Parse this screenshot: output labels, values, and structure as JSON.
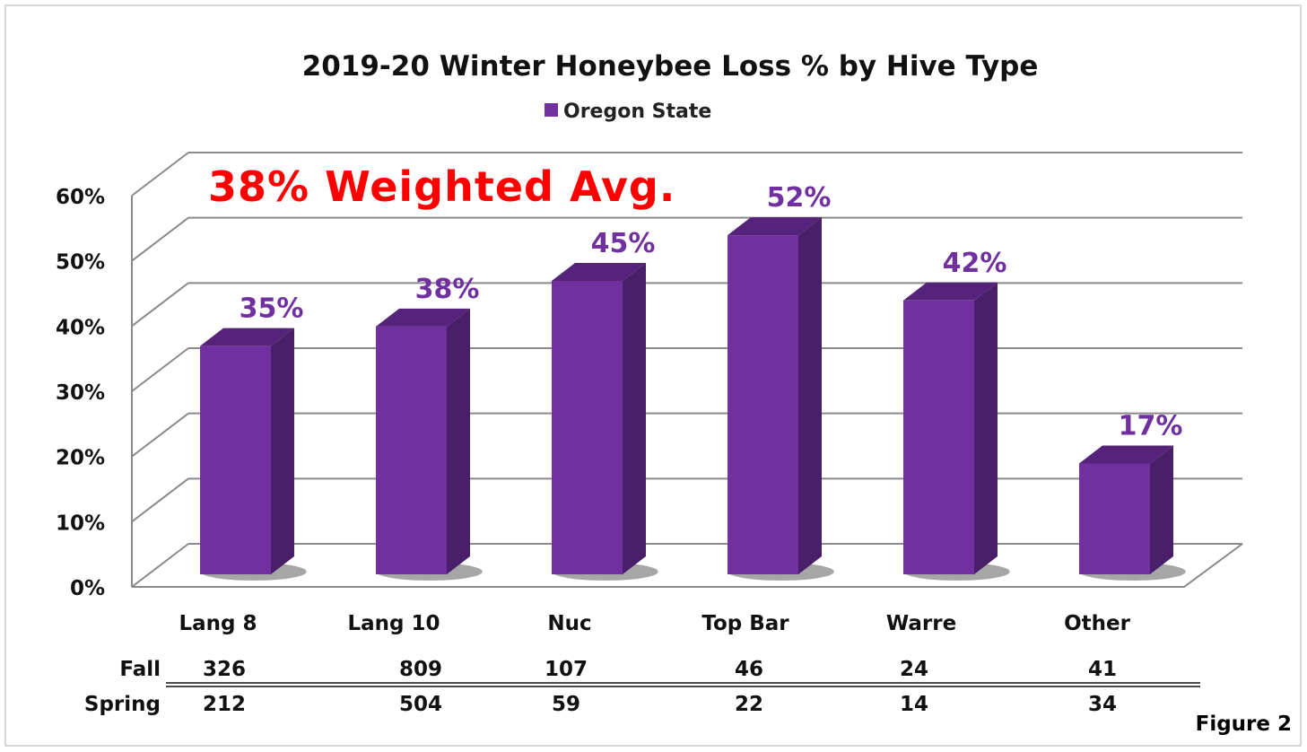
{
  "chart_data": {
    "type": "bar",
    "title": "2019-20 Winter Honeybee Loss % by Hive Type",
    "legend": {
      "position": "top",
      "entries": [
        "Oregon State"
      ]
    },
    "series": [
      {
        "name": "Oregon State",
        "values": [
          35,
          38,
          45,
          52,
          42,
          17
        ],
        "labels": [
          "35%",
          "38%",
          "45%",
          "52%",
          "42%",
          "17%"
        ]
      }
    ],
    "categories": [
      "Lang 8",
      "Lang 10",
      "Nuc",
      "Top Bar",
      "Warre",
      "Other"
    ],
    "ylim": [
      0,
      60
    ],
    "yticks": [
      "0%",
      "10%",
      "20%",
      "30%",
      "40%",
      "50%",
      "60%"
    ],
    "grid": true,
    "style": "3d-column",
    "colors": {
      "bar": "#7030a0",
      "bar_side": "#4a1f6a",
      "bar_top": "#55237a",
      "label": "#7030a0",
      "annotation": "#ff0000"
    },
    "annotation": "38% Weighted Avg.",
    "table": {
      "rows": [
        {
          "label": "Fall",
          "values": [
            "326",
            "809",
            "107",
            "46",
            "24",
            "41"
          ]
        },
        {
          "label": "Spring",
          "values": [
            "212",
            "504",
            "59",
            "22",
            "14",
            "34"
          ]
        }
      ]
    },
    "figure_label": "Figure 2"
  }
}
